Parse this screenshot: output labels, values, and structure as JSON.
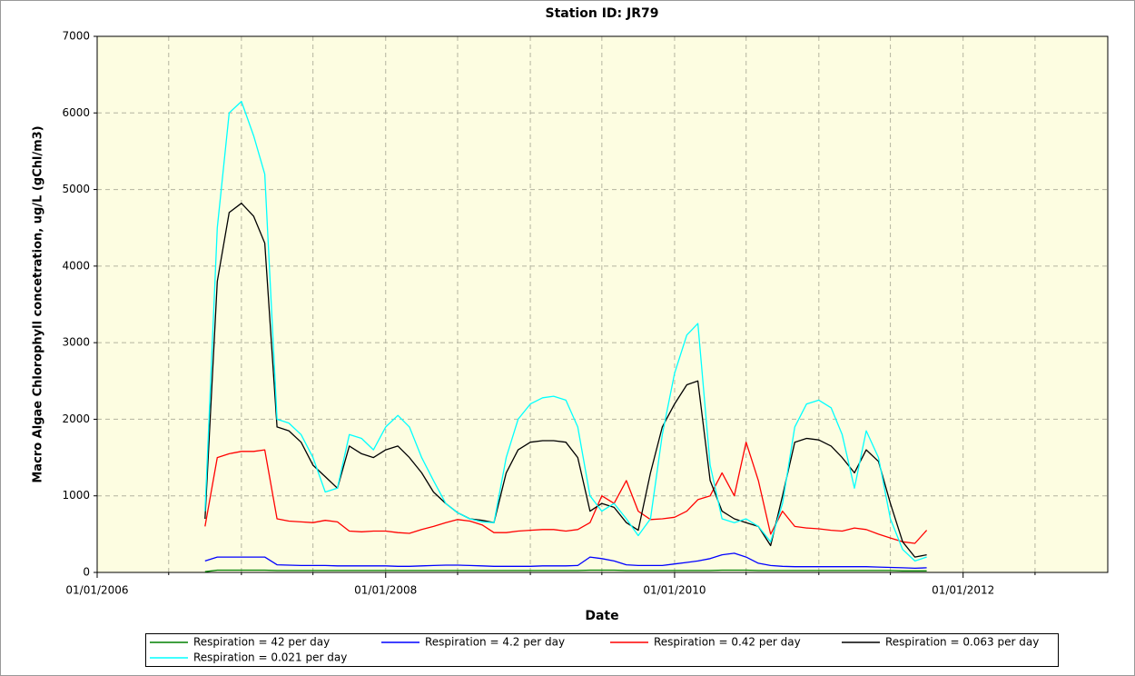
{
  "chart_data": {
    "type": "line",
    "title": "Station ID: JR79",
    "x_label": "Date",
    "y_label": "Macro Algae Chlorophyll concetration, ug/L  (gChl/m3)",
    "xlim": [
      "2006-01-01",
      "2013-01-01"
    ],
    "xticks": [
      {
        "value": "2006-01-01",
        "label": "01/01/2006"
      },
      {
        "value": "2008-01-01",
        "label": "01/01/2008"
      },
      {
        "value": "2010-01-01",
        "label": "01/01/2010"
      },
      {
        "value": "2012-01-01",
        "label": "01/01/2012"
      }
    ],
    "xminor_ticks": [
      "2006-07-01",
      "2007-01-01",
      "2007-07-01",
      "2008-07-01",
      "2009-01-01",
      "2009-07-01",
      "2010-07-01",
      "2011-01-01",
      "2011-07-01",
      "2012-07-01"
    ],
    "ylim": [
      0,
      7000
    ],
    "yticks": [
      0,
      1000,
      2000,
      3000,
      4000,
      5000,
      6000,
      7000
    ],
    "grid": true,
    "legend": "bottom",
    "x": [
      "2006-10-01",
      "2006-11-01",
      "2006-12-01",
      "2007-01-01",
      "2007-02-01",
      "2007-03-01",
      "2007-04-01",
      "2007-05-01",
      "2007-06-01",
      "2007-07-01",
      "2007-08-01",
      "2007-09-01",
      "2007-10-01",
      "2007-11-01",
      "2007-12-01",
      "2008-01-01",
      "2008-02-01",
      "2008-03-01",
      "2008-04-01",
      "2008-05-01",
      "2008-06-01",
      "2008-07-01",
      "2008-08-01",
      "2008-09-01",
      "2008-10-01",
      "2008-11-01",
      "2008-12-01",
      "2009-01-01",
      "2009-02-01",
      "2009-03-01",
      "2009-04-01",
      "2009-05-01",
      "2009-06-01",
      "2009-07-01",
      "2009-08-01",
      "2009-09-01",
      "2009-10-01",
      "2009-11-01",
      "2009-12-01",
      "2010-01-01",
      "2010-02-01",
      "2010-03-01",
      "2010-04-01",
      "2010-05-01",
      "2010-06-01",
      "2010-07-01",
      "2010-08-01",
      "2010-09-01",
      "2010-10-01",
      "2010-11-01",
      "2010-12-01",
      "2011-01-01",
      "2011-02-01",
      "2011-03-01",
      "2011-04-01",
      "2011-05-01",
      "2011-06-01",
      "2011-07-01",
      "2011-08-01",
      "2011-09-01",
      "2011-10-01"
    ],
    "series": [
      {
        "name": "Respiration = 42 per day",
        "color": "#008000",
        "values": [
          10,
          30,
          30,
          30,
          30,
          30,
          25,
          25,
          25,
          25,
          25,
          25,
          25,
          25,
          25,
          25,
          25,
          25,
          25,
          25,
          25,
          25,
          25,
          25,
          25,
          25,
          25,
          25,
          25,
          25,
          25,
          25,
          30,
          30,
          30,
          25,
          25,
          25,
          25,
          25,
          25,
          25,
          25,
          30,
          30,
          30,
          25,
          25,
          25,
          25,
          25,
          25,
          25,
          25,
          25,
          25,
          25,
          25,
          20,
          20,
          20
        ]
      },
      {
        "name": "Respiration = 4.2 per day",
        "color": "#0000ff",
        "values": [
          150,
          200,
          200,
          200,
          200,
          200,
          100,
          95,
          90,
          90,
          90,
          85,
          85,
          85,
          85,
          85,
          80,
          80,
          85,
          90,
          95,
          95,
          90,
          85,
          80,
          80,
          80,
          80,
          85,
          85,
          85,
          90,
          200,
          180,
          150,
          100,
          90,
          90,
          90,
          110,
          130,
          150,
          180,
          230,
          250,
          200,
          120,
          90,
          80,
          75,
          75,
          75,
          75,
          75,
          75,
          75,
          70,
          65,
          60,
          55,
          60
        ]
      },
      {
        "name": "Respiration = 0.42 per day",
        "color": "#ff0000",
        "values": [
          600,
          1500,
          1550,
          1580,
          1580,
          1600,
          700,
          670,
          660,
          650,
          680,
          660,
          540,
          530,
          540,
          540,
          520,
          510,
          560,
          600,
          650,
          690,
          670,
          620,
          520,
          520,
          540,
          550,
          560,
          560,
          540,
          560,
          650,
          1000,
          900,
          1200,
          800,
          690,
          700,
          720,
          800,
          950,
          1000,
          1300,
          1000,
          1700,
          1200,
          500,
          800,
          600,
          580,
          570,
          550,
          540,
          580,
          560,
          500,
          450,
          400,
          380,
          550
        ]
      },
      {
        "name": "Respiration = 0.063 per day",
        "color": "#000000",
        "values": [
          700,
          3800,
          4700,
          4820,
          4650,
          4300,
          1900,
          1850,
          1700,
          1400,
          1250,
          1100,
          1650,
          1550,
          1500,
          1600,
          1650,
          1500,
          1300,
          1050,
          900,
          780,
          700,
          680,
          650,
          1300,
          1600,
          1700,
          1720,
          1720,
          1700,
          1500,
          800,
          900,
          850,
          650,
          550,
          1300,
          1900,
          2200,
          2450,
          2500,
          1200,
          800,
          700,
          650,
          600,
          350,
          1000,
          1700,
          1750,
          1730,
          1650,
          1500,
          1300,
          1600,
          1450,
          900,
          400,
          200,
          230
        ]
      },
      {
        "name": "Respiration = 0.021 per day",
        "color": "#00ffff",
        "values": [
          800,
          4500,
          6000,
          6150,
          5700,
          5200,
          2000,
          1950,
          1800,
          1500,
          1050,
          1100,
          1800,
          1750,
          1600,
          1900,
          2050,
          1900,
          1500,
          1200,
          900,
          780,
          700,
          660,
          650,
          1500,
          2000,
          2200,
          2280,
          2300,
          2250,
          1900,
          1000,
          800,
          900,
          700,
          480,
          700,
          1800,
          2600,
          3100,
          3250,
          1400,
          700,
          650,
          700,
          600,
          400,
          900,
          1900,
          2200,
          2250,
          2150,
          1800,
          1100,
          1850,
          1500,
          700,
          300,
          150,
          200
        ]
      }
    ]
  }
}
